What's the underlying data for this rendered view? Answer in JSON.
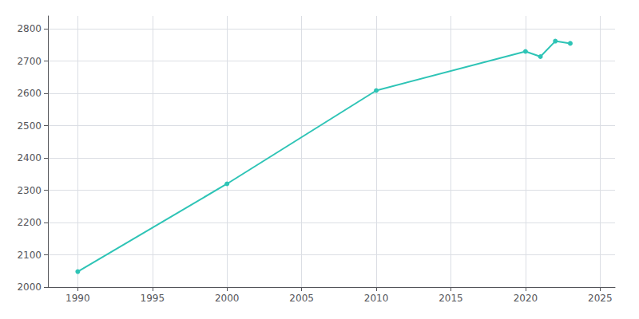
{
  "chart_data": {
    "type": "line",
    "x": [
      1990,
      2000,
      2010,
      2020,
      2021,
      2022,
      2023
    ],
    "values": [
      2048,
      2320,
      2609,
      2730,
      2714,
      2762,
      2755
    ],
    "color": "#2ec4b6",
    "marker": "circle",
    "xlim": [
      1988,
      2026
    ],
    "xticks": [
      1990,
      1995,
      2000,
      2005,
      2010,
      2015,
      2020,
      2025
    ],
    "ylim": [
      2000,
      2840
    ],
    "yticks": [
      2000,
      2100,
      2200,
      2300,
      2400,
      2500,
      2600,
      2700,
      2800
    ],
    "grid": true
  }
}
